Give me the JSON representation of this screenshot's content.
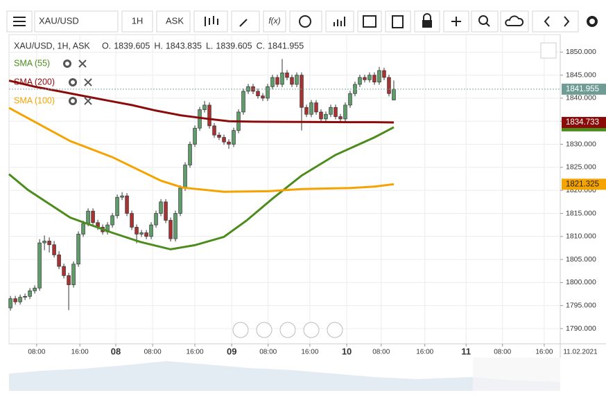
{
  "toolbar": {
    "symbol": "XAU/USD",
    "interval": "1H",
    "price_type": "ASK",
    "function_icon": "f(x)"
  },
  "chart_data": {
    "type": "candlestick",
    "info": "XAU/USD, 1H, ASK",
    "ohlc_prefixes": [
      "O.",
      "H.",
      "L.",
      "C."
    ],
    "up_color": "#5e9c6a",
    "down_color": "#a83232",
    "open": [
      1794.5,
      1796.5,
      1795.8,
      1796.8,
      1797.0,
      1798.2,
      1798.8,
      1808.6,
      1809.0,
      1808.2,
      1806.0,
      1803.5,
      1801.5,
      1799.5,
      1804.0,
      1810.5,
      1812.8,
      1815.5,
      1813.0,
      1812.0,
      1811.0,
      1812.5,
      1814.5,
      1818.5,
      1818.8,
      1815.0,
      1812.0,
      1810.5,
      1810.8,
      1810.0,
      1812.5,
      1815.0,
      1817.5,
      1813.5,
      1809.5,
      1815.0,
      1820.5,
      1825.5,
      1830.0,
      1833.5,
      1837.5,
      1838.5,
      1834.0,
      1832.0,
      1831.5,
      1830.5,
      1830.0,
      1833.0,
      1837.0,
      1841.5,
      1842.5,
      1841.5,
      1840.5,
      1840.0,
      1842.5,
      1844.5,
      1843.0,
      1845.5,
      1844.5,
      1843.0,
      1845.0,
      1838.0,
      1836.5,
      1839.0,
      1837.0,
      1835.5,
      1836.5,
      1838.0,
      1836.0,
      1835.5,
      1838.5,
      1841.0,
      1843.0,
      1844.5,
      1844.0,
      1845.0,
      1843.5,
      1846.0,
      1844.5,
      1839.605
    ],
    "high": [
      1797.1,
      1797.1,
      1797.4,
      1797.6,
      1798.8,
      1799.4,
      1809.4,
      1810.2,
      1809.8,
      1809.0,
      1806.8,
      1804.1,
      1802.1,
      1804.6,
      1811.1,
      1813.4,
      1816.1,
      1816.1,
      1813.6,
      1812.6,
      1813.1,
      1815.1,
      1819.1,
      1819.6,
      1819.4,
      1815.6,
      1812.6,
      1811.4,
      1811.4,
      1813.1,
      1815.6,
      1818.1,
      1818.1,
      1814.1,
      1815.6,
      1821.1,
      1826.1,
      1830.6,
      1834.1,
      1838.1,
      1839.4,
      1839.1,
      1834.6,
      1832.6,
      1832.1,
      1831.1,
      1833.6,
      1837.6,
      1842.1,
      1843.1,
      1843.1,
      1842.1,
      1841.1,
      1843.1,
      1845.1,
      1845.1,
      1848.5,
      1846.1,
      1845.1,
      1845.6,
      1845.6,
      1838.6,
      1839.6,
      1839.6,
      1837.6,
      1837.1,
      1838.6,
      1838.6,
      1836.6,
      1839.1,
      1841.6,
      1843.6,
      1845.1,
      1845.1,
      1845.6,
      1845.6,
      1846.8,
      1846.6,
      1845.1,
      1843.835
    ],
    "low": [
      1793.9,
      1795.2,
      1795.2,
      1796.2,
      1796.4,
      1797.6,
      1798.2,
      1807.0,
      1806.5,
      1805.4,
      1802.9,
      1800.9,
      1794.0,
      1798.9,
      1803.4,
      1809.9,
      1812.2,
      1812.4,
      1811.4,
      1810.4,
      1810.4,
      1811.9,
      1813.9,
      1817.9,
      1814.4,
      1811.4,
      1808.5,
      1809.9,
      1809.4,
      1809.4,
      1811.9,
      1814.4,
      1812.9,
      1808.9,
      1808.9,
      1814.4,
      1819.9,
      1824.9,
      1829.4,
      1832.9,
      1836.9,
      1833.4,
      1831.4,
      1830.9,
      1829.9,
      1829.0,
      1829.4,
      1832.4,
      1836.4,
      1840.9,
      1840.9,
      1839.9,
      1839.4,
      1839.4,
      1841.9,
      1842.4,
      1842.4,
      1843.9,
      1842.4,
      1842.4,
      1833.0,
      1835.9,
      1835.9,
      1836.4,
      1834.9,
      1834.9,
      1835.9,
      1835.4,
      1834.9,
      1834.9,
      1837.9,
      1840.4,
      1842.4,
      1843.4,
      1843.4,
      1842.9,
      1842.9,
      1843.9,
      1840.4,
      1839.605
    ],
    "close": [
      1796.5,
      1795.8,
      1796.8,
      1797.0,
      1798.2,
      1798.8,
      1808.6,
      1809.0,
      1808.2,
      1806.0,
      1803.5,
      1801.5,
      1799.5,
      1804.0,
      1810.5,
      1812.8,
      1815.5,
      1813.0,
      1812.0,
      1811.0,
      1812.5,
      1814.5,
      1818.5,
      1818.8,
      1815.0,
      1812.0,
      1810.5,
      1810.8,
      1810.0,
      1812.5,
      1815.0,
      1817.5,
      1813.5,
      1809.5,
      1815.0,
      1820.5,
      1825.5,
      1830.0,
      1833.5,
      1837.5,
      1838.5,
      1834.0,
      1832.0,
      1831.5,
      1830.5,
      1830.0,
      1833.0,
      1837.0,
      1841.5,
      1842.5,
      1841.5,
      1840.5,
      1840.0,
      1842.5,
      1844.5,
      1843.0,
      1845.5,
      1844.5,
      1843.0,
      1845.0,
      1838.0,
      1836.5,
      1839.0,
      1837.0,
      1835.5,
      1836.5,
      1838.0,
      1836.0,
      1835.5,
      1838.5,
      1841.0,
      1843.0,
      1844.5,
      1844.0,
      1845.0,
      1843.5,
      1846.0,
      1844.5,
      1841.0,
      1841.955
    ],
    "series": [
      {
        "name": "SMA (55)",
        "color": "#4c8c1c",
        "x": [
          -0.3,
          3.6,
          12.3,
          21,
          26.8,
          33,
          38,
          44,
          48.6,
          54,
          60,
          67,
          75,
          79
        ],
        "values": [
          1823.5,
          1820.1,
          1814.1,
          1810.8,
          1808.8,
          1807.2,
          1808.1,
          1809.9,
          1813.4,
          1818.2,
          1823.2,
          1827.7,
          1831.5,
          1833.7
        ]
      },
      {
        "name": "SMA (200)",
        "color": "#8b0a0a",
        "x": [
          -0.3,
          5,
          10,
          15,
          20,
          25,
          30,
          35,
          40,
          45,
          50,
          60,
          70,
          75,
          79
        ],
        "values": [
          1843.8,
          1842.5,
          1841.5,
          1840.5,
          1839.5,
          1838.5,
          1837.3,
          1836.3,
          1835.6,
          1835.0,
          1834.9,
          1834.85,
          1834.8,
          1834.8,
          1834.733
        ]
      },
      {
        "name": "SMA (100)",
        "color": "#f5a300",
        "x": [
          -0.3,
          12.3,
          21,
          31,
          35.5,
          44,
          53,
          60,
          70,
          75,
          79
        ],
        "values": [
          1837.9,
          1830.7,
          1827.2,
          1822.1,
          1820.6,
          1819.7,
          1819.8,
          1820.3,
          1820.5,
          1820.8,
          1821.325
        ]
      }
    ],
    "xlim": [
      -0.3,
      113.3
    ],
    "ylim": [
      1786.7,
      1853.8
    ],
    "yticks": [
      {
        "value": 1790,
        "label": "1790.000"
      },
      {
        "value": 1795,
        "label": "1795.000"
      },
      {
        "value": 1800,
        "label": "1800.000"
      },
      {
        "value": 1805,
        "label": "1805.000"
      },
      {
        "value": 1810,
        "label": "1810.000"
      },
      {
        "value": 1815,
        "label": "1815.000"
      },
      {
        "value": 1820,
        "label": "1820.000"
      },
      {
        "value": 1825,
        "label": "1825.000"
      },
      {
        "value": 1830,
        "label": "1830.000"
      },
      {
        "value": 1835,
        "label": "1835.000"
      },
      {
        "value": 1840,
        "label": "1840.000"
      },
      {
        "value": 1845,
        "label": "1845.000"
      },
      {
        "value": 1850,
        "label": "1850.000"
      }
    ],
    "xticks": [
      {
        "value": 5.4,
        "label": "08:00"
      },
      {
        "value": 14.3,
        "label": "16:00"
      },
      {
        "value": 21.7,
        "label": "08"
      },
      {
        "value": 29.3,
        "label": "08:00"
      },
      {
        "value": 38,
        "label": "16:00"
      },
      {
        "value": 45.6,
        "label": "09"
      },
      {
        "value": 53.1,
        "label": "08:00"
      },
      {
        "value": 61.7,
        "label": "16:00"
      },
      {
        "value": 69.3,
        "label": "10"
      },
      {
        "value": 76.4,
        "label": "08:00"
      },
      {
        "value": 85.4,
        "label": "16:00"
      },
      {
        "value": 93.9,
        "label": "11"
      },
      {
        "value": 101.4,
        "label": "08:00"
      },
      {
        "value": 110,
        "label": "16:00"
      }
    ],
    "date_label": "11.02.2021",
    "grid": true
  }
}
